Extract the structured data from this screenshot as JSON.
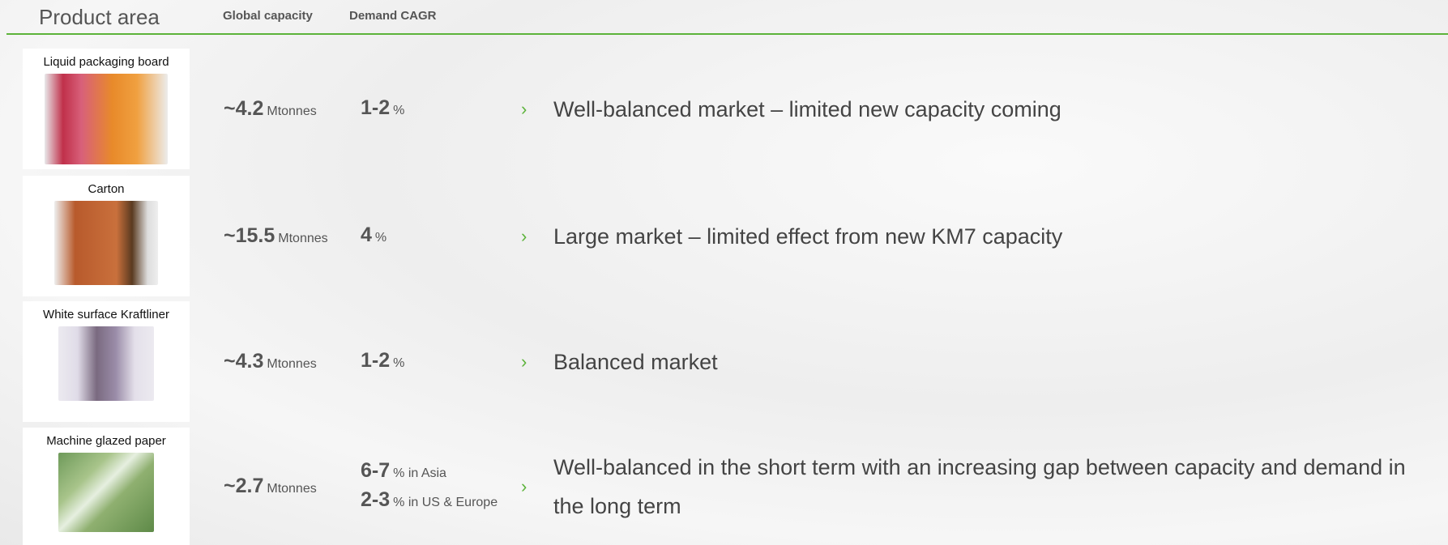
{
  "header": {
    "title": "Product area",
    "columns": [
      "Global capacity",
      "Demand CAGR"
    ]
  },
  "rows": [
    {
      "product": "Liquid packaging board",
      "capacity": "~4.2",
      "capacity_unit": "Mtonnes",
      "cagr": [
        {
          "value": "1-2",
          "unit": "%"
        }
      ],
      "comment": "Well-balanced market – limited new capacity coming"
    },
    {
      "product": "Carton",
      "capacity": "~15.5",
      "capacity_unit": "Mtonnes",
      "cagr": [
        {
          "value": "4",
          "unit": "%"
        }
      ],
      "comment": "Large market – limited effect from new KM7 capacity"
    },
    {
      "product": "White surface Kraftliner",
      "capacity": "~4.3",
      "capacity_unit": "Mtonnes",
      "cagr": [
        {
          "value": "1-2",
          "unit": "%"
        }
      ],
      "comment": "Balanced market"
    },
    {
      "product": "Machine glazed paper",
      "capacity": "~2.7",
      "capacity_unit": "Mtonnes",
      "cagr": [
        {
          "value": "6-7",
          "unit": "% in Asia"
        },
        {
          "value": "2-3",
          "unit": "% in US & Europe"
        }
      ],
      "comment": "Well-balanced in the short term with an increasing gap between capacity and demand in the long term"
    }
  ]
}
